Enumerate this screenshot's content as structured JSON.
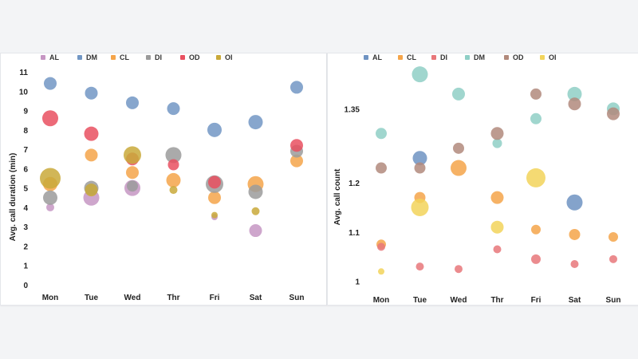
{
  "chart_data": [
    {
      "type": "scatter",
      "title": "",
      "xlabel": "",
      "ylabel": "Avg. call duration (min)",
      "categories": [
        "Mon",
        "Tue",
        "Wed",
        "Thr",
        "Fri",
        "Sat",
        "Sun"
      ],
      "yticks": [
        "0",
        "1",
        "2",
        "3",
        "4",
        "5",
        "6",
        "7",
        "8",
        "9",
        "10",
        "11"
      ],
      "ylim": [
        0,
        11
      ],
      "legend": {
        "position": "top",
        "entries": [
          "AL",
          "DM",
          "CL",
          "DI",
          "OD",
          "OI"
        ]
      },
      "series": [
        {
          "name": "AL",
          "color": "#c696c3",
          "points": [
            [
              0,
              4.0,
              5
            ],
            [
              1,
              4.5,
              10
            ],
            [
              2,
              5.0,
              10
            ],
            [
              4,
              3.5,
              4
            ],
            [
              5,
              2.8,
              8
            ]
          ]
        },
        {
          "name": "DM",
          "color": "#7297c4",
          "points": [
            [
              0,
              10.4,
              8
            ],
            [
              1,
              9.9,
              8
            ],
            [
              2,
              9.4,
              8
            ],
            [
              3,
              9.1,
              8
            ],
            [
              4,
              8.0,
              9
            ],
            [
              5,
              8.4,
              9
            ],
            [
              6,
              10.2,
              8
            ]
          ]
        },
        {
          "name": "CL",
          "color": "#f5a54a",
          "points": [
            [
              0,
              5.2,
              9
            ],
            [
              1,
              6.7,
              8
            ],
            [
              2,
              5.8,
              8
            ],
            [
              3,
              5.4,
              9
            ],
            [
              4,
              4.5,
              8
            ],
            [
              5,
              5.2,
              10
            ],
            [
              6,
              6.4,
              8
            ]
          ]
        },
        {
          "name": "DI",
          "color": "#9b9b9b",
          "points": [
            [
              0,
              4.5,
              9
            ],
            [
              1,
              5.0,
              9
            ],
            [
              2,
              5.1,
              7
            ],
            [
              3,
              6.7,
              10
            ],
            [
              4,
              5.2,
              11
            ],
            [
              5,
              4.8,
              9
            ],
            [
              6,
              6.9,
              8
            ]
          ]
        },
        {
          "name": "OD",
          "color": "#e95060",
          "points": [
            [
              0,
              8.6,
              10
            ],
            [
              1,
              7.8,
              9
            ],
            [
              2,
              6.5,
              8
            ],
            [
              3,
              6.2,
              7
            ],
            [
              4,
              5.3,
              8
            ],
            [
              6,
              7.2,
              8
            ]
          ]
        },
        {
          "name": "OI",
          "color": "#c9a93a",
          "points": [
            [
              0,
              5.5,
              13
            ],
            [
              1,
              4.9,
              8
            ],
            [
              2,
              6.7,
              11
            ],
            [
              3,
              4.9,
              5
            ],
            [
              4,
              3.6,
              4
            ],
            [
              5,
              3.8,
              5
            ]
          ]
        }
      ]
    },
    {
      "type": "scatter",
      "title": "",
      "xlabel": "",
      "ylabel": "Avg. call count",
      "categories": [
        "Mon",
        "Tue",
        "Wed",
        "Thr",
        "Fri",
        "Sat",
        "Sun"
      ],
      "yticks": [
        "1",
        "1.1",
        "1.2",
        "1.35"
      ],
      "ytick_values": [
        1,
        1.1,
        1.2,
        1.35
      ],
      "ylim": [
        0.98,
        1.43
      ],
      "legend": {
        "position": "top",
        "entries": [
          "AL",
          "CL",
          "DI",
          "DM",
          "OD",
          "OI"
        ]
      },
      "series": [
        {
          "name": "AL",
          "color": "#6f93c2",
          "points": [
            [
              1,
              1.25,
              9
            ],
            [
              5,
              1.16,
              10
            ]
          ]
        },
        {
          "name": "CL",
          "color": "#f5a54a",
          "points": [
            [
              0,
              1.075,
              6
            ],
            [
              1,
              1.17,
              7
            ],
            [
              2,
              1.23,
              10
            ],
            [
              3,
              1.17,
              8
            ],
            [
              4,
              1.105,
              6
            ],
            [
              5,
              1.095,
              7
            ],
            [
              6,
              1.09,
              6
            ]
          ]
        },
        {
          "name": "DI",
          "color": "#e8777a",
          "points": [
            [
              0,
              1.07,
              5
            ],
            [
              1,
              1.03,
              5
            ],
            [
              2,
              1.025,
              5
            ],
            [
              3,
              1.065,
              5
            ],
            [
              4,
              1.045,
              6
            ],
            [
              5,
              1.035,
              5
            ],
            [
              6,
              1.045,
              5
            ]
          ]
        },
        {
          "name": "DM",
          "color": "#8fcfc6",
          "points": [
            [
              0,
              1.3,
              7
            ],
            [
              1,
              1.42,
              10
            ],
            [
              2,
              1.38,
              8
            ],
            [
              3,
              1.28,
              6
            ],
            [
              4,
              1.33,
              7
            ],
            [
              5,
              1.38,
              9
            ],
            [
              6,
              1.35,
              8
            ]
          ]
        },
        {
          "name": "OD",
          "color": "#b28a7c",
          "points": [
            [
              0,
              1.23,
              7
            ],
            [
              1,
              1.23,
              7
            ],
            [
              2,
              1.27,
              7
            ],
            [
              3,
              1.3,
              8
            ],
            [
              4,
              1.38,
              7
            ],
            [
              5,
              1.36,
              8
            ],
            [
              6,
              1.34,
              8
            ]
          ]
        },
        {
          "name": "OI",
          "color": "#f2d45b",
          "points": [
            [
              0,
              1.02,
              4
            ],
            [
              1,
              1.15,
              11
            ],
            [
              3,
              1.11,
              8
            ],
            [
              4,
              1.21,
              12
            ]
          ]
        }
      ]
    }
  ]
}
